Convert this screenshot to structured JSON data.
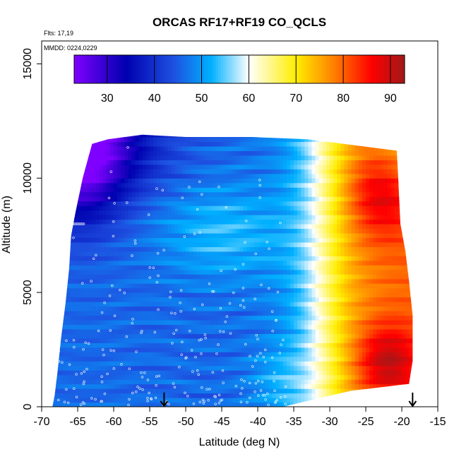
{
  "chart_data": {
    "type": "heatmap",
    "title": "ORCAS RF17+RF19 CO_QCLS",
    "xlabel": "Latitude (deg N)",
    "ylabel": "Altitude (m)",
    "xlim": [
      -70,
      -15
    ],
    "ylim": [
      0,
      16000
    ],
    "x_ticks": [
      "-70",
      "-65",
      "-60",
      "-55",
      "-50",
      "-45",
      "-40",
      "-35",
      "-30",
      "-25",
      "-20",
      "-15"
    ],
    "y_ticks": [
      "0",
      "5000",
      "10000",
      "15000"
    ],
    "annotations": {
      "flights": "Flts: 17,19",
      "mmdd": "MMDD: 0224,0229"
    },
    "colorbar": {
      "range": [
        23,
        93
      ],
      "ticks": [
        "30",
        "40",
        "50",
        "60",
        "70",
        "80",
        "90"
      ],
      "colors": [
        "#8000ff",
        "#0000b0",
        "#1e50e0",
        "#00b0ff",
        "#ffffff",
        "#ffee00",
        "#ff8000",
        "#ff0000",
        "#a01818"
      ]
    },
    "arrows_lat": [
      -53,
      -18.5
    ],
    "region": {
      "left_edge": [
        [
          -68.5,
          0
        ],
        [
          -68.2,
          500
        ],
        [
          -67.8,
          1500
        ],
        [
          -67.3,
          3000
        ],
        [
          -66.7,
          4500
        ],
        [
          -66.2,
          6000
        ],
        [
          -65.9,
          7500
        ],
        [
          -65.3,
          8500
        ],
        [
          -64.3,
          10000
        ],
        [
          -63.0,
          11500
        ],
        [
          -60.8,
          11700
        ]
      ],
      "right_edge": [
        [
          -36.5,
          0
        ],
        [
          -27,
          700
        ],
        [
          -19,
          1000
        ],
        [
          -18.5,
          2000
        ],
        [
          -18.5,
          4000
        ],
        [
          -19.0,
          5500
        ],
        [
          -19.5,
          6800
        ],
        [
          -20.2,
          8000
        ],
        [
          -20.5,
          10000
        ],
        [
          -20.7,
          11200
        ],
        [
          -33,
          11700
        ],
        [
          -41,
          11800
        ]
      ],
      "top_edge": [
        [
          -60.8,
          11700
        ],
        [
          -56,
          11900
        ],
        [
          -50,
          11800
        ],
        [
          -41,
          11800
        ]
      ]
    },
    "field_model": "CO ppb estimated: west of -60 deg at high altitude ~25-35 (purple/dark blue); mid latitudes -60 to -38 ~42-52 (blue); -35 ~60 (white); north of -28 ~68-92 (yellow/orange/red) with maxima near -22 at 1000-3000 m and near -25 at 9000 m"
  }
}
